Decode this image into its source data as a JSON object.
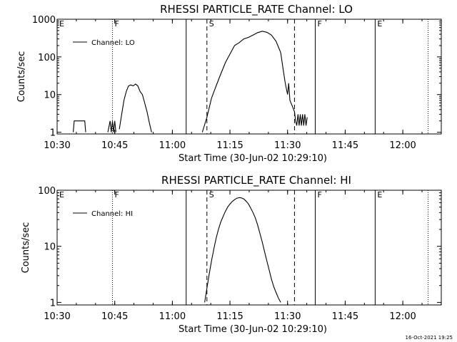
{
  "footer": {
    "timestamp": "16-Oct-2021 19:25"
  },
  "chart_data": [
    {
      "type": "line",
      "title": "RHESSI PARTICLE_RATE Channel: LO",
      "xlabel": "Start Time (30-Jun-02 10:29:10)",
      "ylabel": "Counts/sec",
      "yscale": "log",
      "ylim": [
        0.9,
        1000
      ],
      "xlim": [
        10.5,
        12.167
      ],
      "xticks": [
        {
          "v": 10.5,
          "label": "10:30"
        },
        {
          "v": 10.75,
          "label": "10:45"
        },
        {
          "v": 11.0,
          "label": "11:00"
        },
        {
          "v": 11.25,
          "label": "11:15"
        },
        {
          "v": 11.5,
          "label": "11:30"
        },
        {
          "v": 11.75,
          "label": "11:45"
        },
        {
          "v": 12.0,
          "label": "12:00"
        }
      ],
      "yticks": [
        {
          "v": 1,
          "label": "1"
        },
        {
          "v": 10,
          "label": "10"
        },
        {
          "v": 100,
          "label": "100"
        },
        {
          "v": 1000,
          "label": "1000"
        }
      ],
      "legend": "Channel: LO",
      "markers": [
        {
          "t": 10.5,
          "label": "E",
          "style": "none"
        },
        {
          "t": 10.74,
          "label": "F",
          "style": "dotted"
        },
        {
          "t": 11.06,
          "label": "",
          "style": "solid"
        },
        {
          "t": 11.15,
          "label": "S",
          "style": "dashed"
        },
        {
          "t": 11.53,
          "label": "",
          "style": "dashed"
        },
        {
          "t": 11.62,
          "label": "F",
          "style": "solid"
        },
        {
          "t": 11.88,
          "label": "E",
          "style": "solid"
        },
        {
          "t": 12.11,
          "label": "",
          "style": "dotted"
        }
      ],
      "segments": [
        {
          "t": [
            10.57,
            10.574,
            10.62,
            10.624
          ],
          "v": [
            1,
            2,
            2,
            1
          ]
        },
        {
          "t": [
            10.72,
            10.73,
            10.735,
            10.74,
            10.745,
            10.75,
            10.755
          ],
          "v": [
            1,
            2,
            1,
            2,
            1,
            2,
            1
          ]
        },
        {
          "t": [
            10.77,
            10.78,
            10.79,
            10.8,
            10.81,
            10.82,
            10.83,
            10.84,
            10.85,
            10.86,
            10.87,
            10.88,
            10.89,
            10.9,
            10.91
          ],
          "v": [
            1.2,
            3,
            7,
            12,
            17,
            18,
            17,
            19,
            17,
            12,
            10,
            6,
            3.5,
            1.8,
            1
          ]
        },
        {
          "t": [
            11.13,
            11.15,
            11.17,
            11.19,
            11.21,
            11.23,
            11.25,
            11.27,
            11.29,
            11.31,
            11.33,
            11.35,
            11.37,
            11.39,
            11.41,
            11.43,
            11.45,
            11.47,
            11.48,
            11.49,
            11.5,
            11.505,
            11.51,
            11.52,
            11.53,
            11.535,
            11.54,
            11.545,
            11.55,
            11.555,
            11.56,
            11.565,
            11.57,
            11.575,
            11.58,
            11.585
          ],
          "v": [
            1,
            2.5,
            8,
            17,
            35,
            70,
            120,
            200,
            240,
            300,
            330,
            380,
            440,
            480,
            450,
            380,
            260,
            130,
            50,
            20,
            10,
            20,
            7,
            5,
            3.5,
            2,
            1.5,
            3,
            1.5,
            3,
            1.5,
            3,
            1.5,
            3,
            1.5,
            2.5
          ]
        }
      ]
    },
    {
      "type": "line",
      "title": "RHESSI PARTICLE_RATE Channel: HI",
      "xlabel": "Start Time (30-Jun-02 10:29:10)",
      "ylabel": "Counts/sec",
      "yscale": "log",
      "ylim": [
        0.9,
        100
      ],
      "xlim": [
        10.5,
        12.167
      ],
      "xticks": [
        {
          "v": 10.5,
          "label": "10:30"
        },
        {
          "v": 10.75,
          "label": "10:45"
        },
        {
          "v": 11.0,
          "label": "11:00"
        },
        {
          "v": 11.25,
          "label": "11:15"
        },
        {
          "v": 11.5,
          "label": "11:30"
        },
        {
          "v": 11.75,
          "label": "11:45"
        },
        {
          "v": 12.0,
          "label": "12:00"
        }
      ],
      "yticks": [
        {
          "v": 1,
          "label": "1"
        },
        {
          "v": 10,
          "label": "10"
        },
        {
          "v": 100,
          "label": "100"
        }
      ],
      "legend": "Channel: HI",
      "markers": [
        {
          "t": 10.5,
          "label": "E",
          "style": "none"
        },
        {
          "t": 10.74,
          "label": "F",
          "style": "dotted"
        },
        {
          "t": 11.06,
          "label": "",
          "style": "solid"
        },
        {
          "t": 11.15,
          "label": "S",
          "style": "dashed"
        },
        {
          "t": 11.53,
          "label": "",
          "style": "dashed"
        },
        {
          "t": 11.62,
          "label": "F",
          "style": "solid"
        },
        {
          "t": 11.88,
          "label": "E",
          "style": "solid"
        },
        {
          "t": 12.11,
          "label": "",
          "style": "dotted"
        }
      ],
      "segments": [
        {
          "t": [
            11.14,
            11.15,
            11.16,
            11.17,
            11.18,
            11.19,
            11.2,
            11.21,
            11.22,
            11.23,
            11.24,
            11.25,
            11.26,
            11.27,
            11.28,
            11.29,
            11.3,
            11.31,
            11.32,
            11.33,
            11.34,
            11.35,
            11.36,
            11.37,
            11.38,
            11.39,
            11.4,
            11.41,
            11.42,
            11.43,
            11.44,
            11.45,
            11.46,
            11.47
          ],
          "v": [
            1,
            1.8,
            3.2,
            5.5,
            9,
            14,
            20,
            27,
            34,
            42,
            50,
            57,
            63,
            68,
            72,
            74,
            73,
            70,
            64,
            57,
            48,
            40,
            32,
            24,
            17,
            12,
            8,
            5.5,
            3.8,
            2.6,
            1.9,
            1.5,
            1.2,
            1
          ]
        }
      ]
    }
  ]
}
